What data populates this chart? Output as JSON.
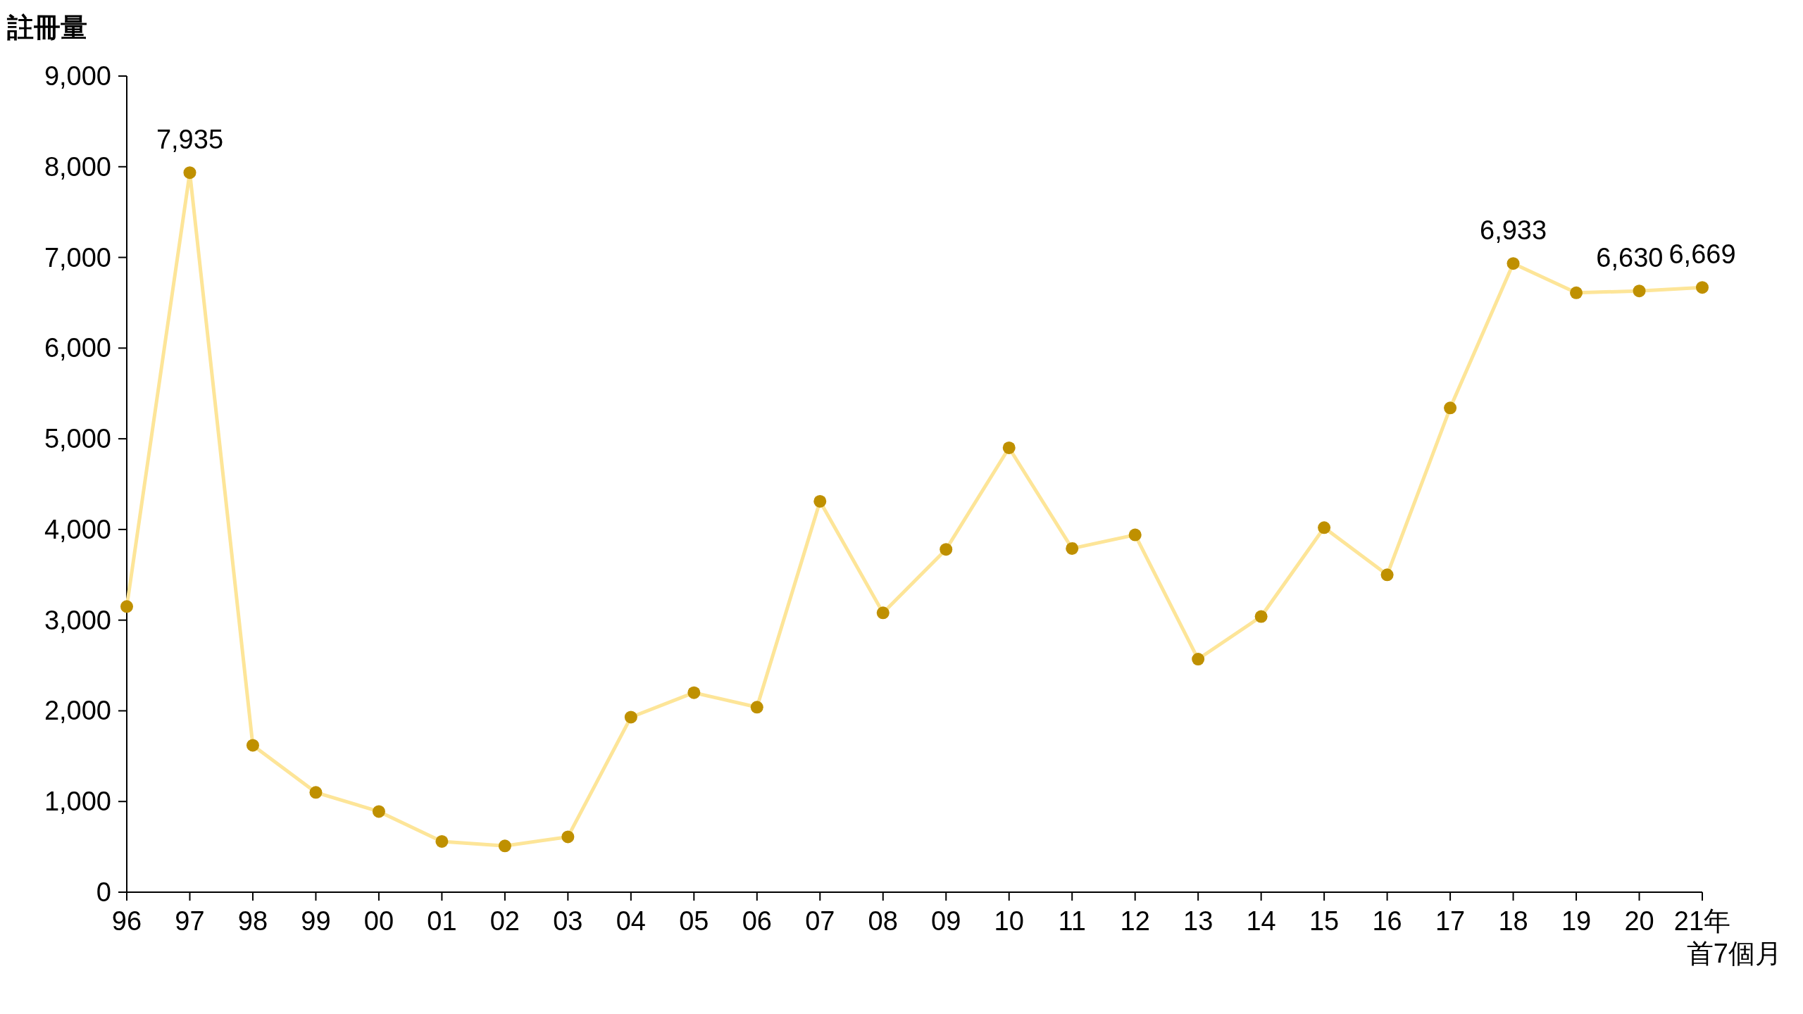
{
  "chart_data": {
    "type": "line",
    "ylabel": "註冊量",
    "categories": [
      "96",
      "97",
      "98",
      "99",
      "00",
      "01",
      "02",
      "03",
      "04",
      "05",
      "06",
      "07",
      "08",
      "09",
      "10",
      "11",
      "12",
      "13",
      "14",
      "15",
      "16",
      "17",
      "18",
      "19",
      "20",
      "21年"
    ],
    "annotations": [
      "首7個月"
    ],
    "series": [
      {
        "color": "#fde598",
        "colors": [
          "#bf9000",
          "#bf9000",
          "#bf9000",
          "#bf9000",
          "#bf9000",
          "#bf9000",
          "#bf9000",
          "#bf9000",
          "#bf9000",
          "#bf9000",
          "#bf9000",
          "#bf9000",
          "#bf9000",
          "#bf9000",
          "#bf9000",
          "#bf9000",
          "#bf9000",
          "#bf9000",
          "#bf9000",
          "#bf9000",
          "#bf9000",
          "#bf9000",
          "#bf9000",
          "#bf9000",
          "#bf9000",
          "#bf9000"
        ],
        "values": [
          3150,
          7935,
          1620,
          1100,
          890,
          560,
          510,
          610,
          1930,
          2200,
          2040,
          4310,
          3080,
          3780,
          4900,
          3790,
          3940,
          2570,
          3040,
          4020,
          3500,
          5340,
          6933,
          6610,
          6630,
          6669
        ],
        "value_labels": [
          null,
          "7,935",
          null,
          null,
          null,
          null,
          null,
          null,
          null,
          null,
          null,
          null,
          null,
          null,
          null,
          null,
          null,
          null,
          null,
          null,
          null,
          null,
          "6,933",
          null,
          "6,630",
          "6,669"
        ]
      }
    ],
    "ylim": [
      0,
      9000
    ],
    "yticks": [
      0,
      {
        "value": 1000,
        "label": "1,000"
      },
      {
        "value": 2000,
        "label": "2,000"
      },
      {
        "value": 3000,
        "label": "3,000"
      },
      {
        "value": 4000,
        "label": "4,000"
      },
      {
        "value": 5000,
        "label": "5,000"
      },
      {
        "value": 6000,
        "label": "6,000"
      },
      {
        "value": 7000,
        "label": "7,000"
      },
      {
        "value": 8000,
        "label": "8,000"
      },
      {
        "value": 9000,
        "label": "9,000"
      }
    ],
    "marker": "circle",
    "line_style": "solid",
    "grid": false
  }
}
